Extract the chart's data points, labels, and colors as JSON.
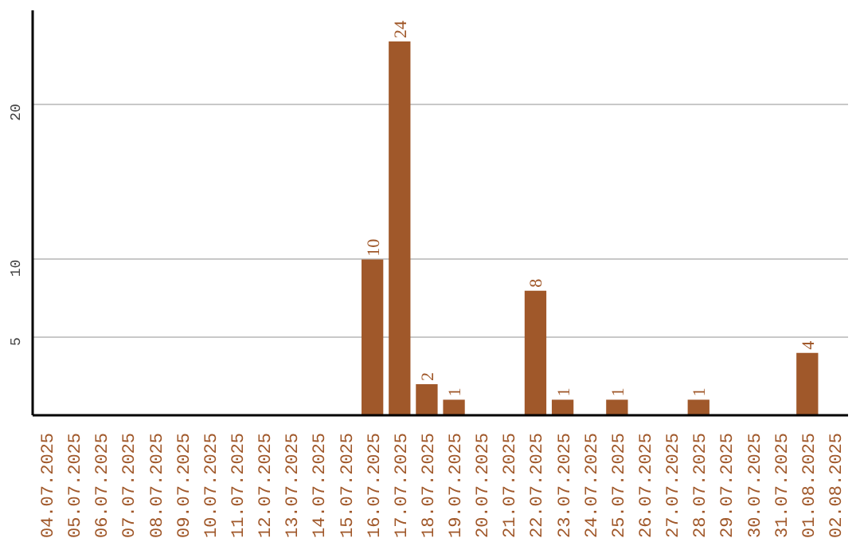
{
  "chart_data": {
    "type": "bar",
    "categories": [
      "04.07.2025",
      "05.07.2025",
      "06.07.2025",
      "07.07.2025",
      "08.07.2025",
      "09.07.2025",
      "10.07.2025",
      "11.07.2025",
      "12.07.2025",
      "13.07.2025",
      "14.07.2025",
      "15.07.2025",
      "16.07.2025",
      "17.07.2025",
      "18.07.2025",
      "19.07.2025",
      "20.07.2025",
      "21.07.2025",
      "22.07.2025",
      "23.07.2025",
      "24.07.2025",
      "25.07.2025",
      "26.07.2025",
      "27.07.2025",
      "28.07.2025",
      "29.07.2025",
      "30.07.2025",
      "31.07.2025",
      "01.08.2025",
      "02.08.2025"
    ],
    "values": [
      0,
      0,
      0,
      0,
      0,
      0,
      0,
      0,
      0,
      0,
      0,
      0,
      10,
      24,
      2,
      1,
      0,
      0,
      8,
      1,
      0,
      1,
      0,
      0,
      1,
      0,
      0,
      0,
      4,
      0
    ],
    "value_labels": [
      null,
      null,
      null,
      null,
      null,
      null,
      null,
      null,
      null,
      null,
      null,
      null,
      "10",
      "24",
      "2",
      "1",
      null,
      null,
      "8",
      "1",
      null,
      "1",
      null,
      null,
      "1",
      null,
      null,
      null,
      "4",
      null
    ],
    "color": "#a0582a",
    "ylim": [
      0,
      26
    ],
    "yticks": [
      5,
      10,
      20
    ],
    "grid": "y"
  }
}
